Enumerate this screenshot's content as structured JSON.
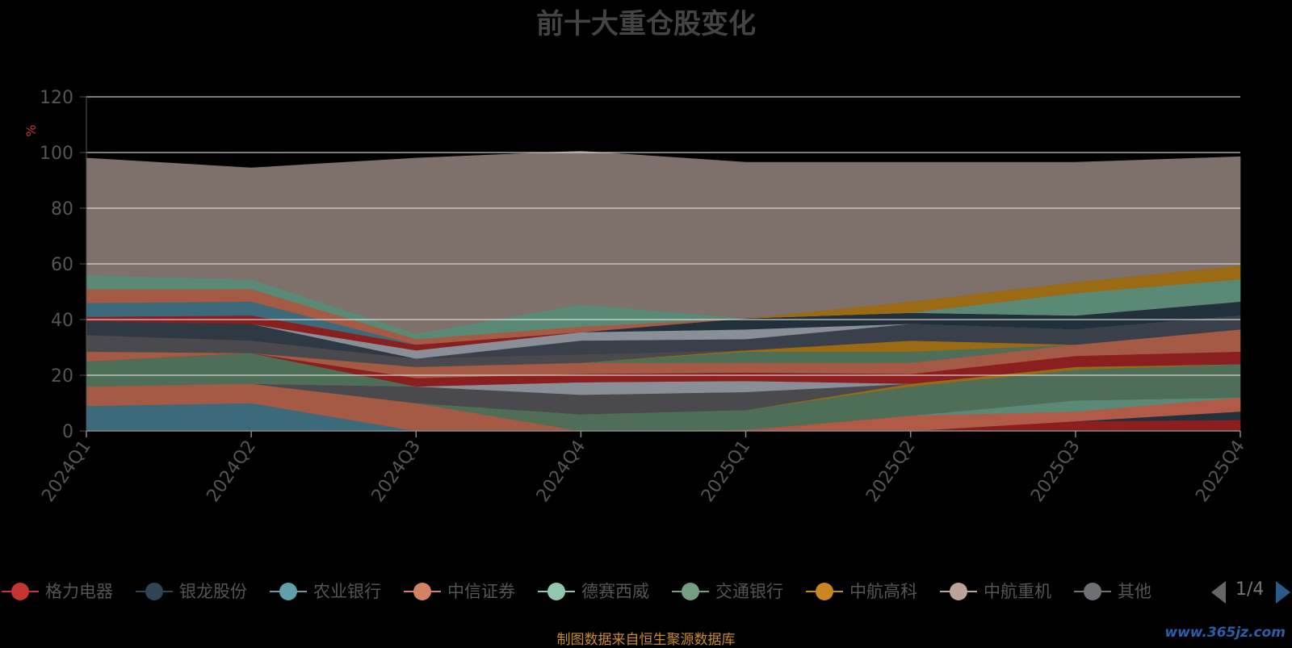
{
  "title": "前十大重仓股变化",
  "footer": "制图数据来自恒生聚源数据库",
  "watermark": "www.365jz.com",
  "pager": "1/4",
  "legend": [
    {
      "name": "格力电器",
      "color": "#c23531"
    },
    {
      "name": "银龙股份",
      "color": "#2f4554"
    },
    {
      "name": "农业银行",
      "color": "#61a0a8"
    },
    {
      "name": "中信证券",
      "color": "#d48265"
    },
    {
      "name": "德赛西威",
      "color": "#91c7ae"
    },
    {
      "name": "交通银行",
      "color": "#749f83"
    },
    {
      "name": "中航高科",
      "color": "#ca8622"
    },
    {
      "name": "中航重机",
      "color": "#bda29a"
    },
    {
      "name": "其他",
      "color": "#6e7074"
    }
  ],
  "chart_data": {
    "type": "area",
    "stacked": true,
    "ylabel": "%",
    "ylim": [
      0,
      120
    ],
    "yticks": [
      0,
      20,
      40,
      60,
      80,
      100,
      120
    ],
    "categories": [
      "2024Q1",
      "2024Q2",
      "2024Q3",
      "2024Q4",
      "2025Q1",
      "2025Q2",
      "2025Q3",
      "2025Q4"
    ],
    "series": [
      {
        "color": "#8b1f1f",
        "values": [
          0,
          0,
          0,
          0,
          0,
          0,
          3.5,
          4
        ]
      },
      {
        "color": "#22303c",
        "values": [
          0,
          0,
          0,
          0,
          0,
          0,
          0,
          3
        ]
      },
      {
        "color": "#b25a48",
        "values": [
          0,
          0,
          0,
          0,
          0,
          5.5,
          3.5,
          5
        ]
      },
      {
        "color": "#5a8a76",
        "values": [
          0,
          0,
          0,
          0,
          0,
          0,
          4,
          0
        ]
      },
      {
        "color": "#3d6a7a",
        "values": [
          9,
          10,
          0,
          0,
          0,
          0,
          0,
          0
        ]
      },
      {
        "color": "#a45a44",
        "values": [
          7,
          7,
          10,
          0,
          0.5,
          0,
          0,
          0
        ]
      },
      {
        "color": "#4e6e58",
        "values": [
          0,
          0,
          0,
          6,
          7,
          10.5,
          11,
          12
        ]
      },
      {
        "color": "#9a6a14",
        "values": [
          0,
          0,
          0,
          0,
          0,
          1,
          1,
          0
        ]
      },
      {
        "color": "#4a4a4e",
        "values": [
          0,
          0,
          6,
          7,
          6.5,
          0,
          0,
          0
        ]
      },
      {
        "color": "#8a8e96",
        "values": [
          0,
          0,
          0,
          4.5,
          4,
          0,
          0,
          0
        ]
      },
      {
        "color": "#4e6e58",
        "values": [
          9,
          11,
          0,
          0,
          0,
          0,
          0,
          0
        ]
      },
      {
        "color": "#8b1f1f",
        "values": [
          0,
          0,
          3,
          3,
          3,
          3.5,
          4,
          4.5
        ]
      },
      {
        "color": "#a45a44",
        "values": [
          3.5,
          0,
          4,
          4,
          3.5,
          4,
          4,
          8
        ]
      },
      {
        "color": "#4e6e58",
        "values": [
          0,
          0,
          0,
          0,
          4,
          4,
          0,
          0
        ]
      },
      {
        "color": "#9a6a14",
        "values": [
          0,
          0,
          0,
          0,
          0.5,
          4,
          0,
          0
        ]
      },
      {
        "color": "#4a4a4e",
        "values": [
          6,
          4.5,
          3,
          3,
          0,
          0,
          0,
          0
        ]
      },
      {
        "color": "#3a404a",
        "values": [
          0,
          0,
          0,
          5,
          4,
          6,
          5.5,
          5
        ]
      },
      {
        "color": "#2e3944",
        "values": [
          5,
          6,
          0,
          0,
          0,
          0,
          0,
          0
        ]
      },
      {
        "color": "#8a8e96",
        "values": [
          0,
          0,
          3,
          3,
          3.5,
          0,
          0,
          0
        ]
      },
      {
        "color": "#22303c",
        "values": [
          0,
          0,
          0,
          0,
          4,
          4,
          5,
          5
        ]
      },
      {
        "color": "#8b1f1f",
        "values": [
          1.5,
          3,
          2,
          0,
          0,
          0,
          0,
          0
        ]
      },
      {
        "color": "#3d6a7a",
        "values": [
          5,
          5,
          0,
          0,
          0,
          0,
          0,
          0
        ]
      },
      {
        "color": "#a45a44",
        "values": [
          5,
          4.5,
          2,
          2,
          0,
          0,
          0,
          0
        ]
      },
      {
        "color": "#5a8a76",
        "values": [
          5,
          3.5,
          2,
          8,
          0,
          0,
          8,
          8
        ]
      },
      {
        "color": "#9a6a14",
        "values": [
          0,
          0,
          0,
          0,
          0,
          4,
          4,
          5
        ]
      },
      {
        "color": "#7e706a",
        "values": [
          42,
          40,
          63,
          55,
          56,
          50,
          43,
          39
        ]
      }
    ]
  }
}
